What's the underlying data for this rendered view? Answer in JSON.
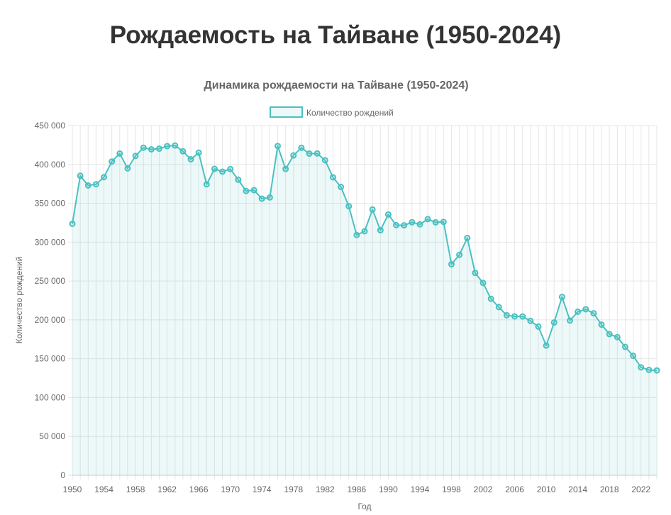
{
  "page": {
    "heading": "Рождаемость на Тайване (1950-2024)"
  },
  "colors": {
    "line": "#4bc0c0",
    "fill": "rgba(75,192,192,0.1)",
    "grid": "#e6e6e6",
    "text": "#666666",
    "heading": "#333333"
  },
  "chart_data": {
    "type": "line",
    "title": "Динамика рождаемости на Тайване (1950-2024)",
    "xlabel": "Год",
    "ylabel": "Количество рождений",
    "ylim": [
      0,
      450000
    ],
    "grid": true,
    "legend_position": "top",
    "y_ticks": [
      "0",
      "50 000",
      "100 000",
      "150 000",
      "200 000",
      "250 000",
      "300 000",
      "350 000",
      "400 000",
      "450 000"
    ],
    "x_ticks": [
      "1950",
      "1954",
      "1958",
      "1962",
      "1966",
      "1970",
      "1974",
      "1978",
      "1982",
      "1986",
      "1990",
      "1994",
      "1998",
      "2002",
      "2006",
      "2010",
      "2014",
      "2018",
      "2022"
    ],
    "series": [
      {
        "name": "Количество рождений",
        "x": [
          1950,
          1951,
          1952,
          1953,
          1954,
          1955,
          1956,
          1957,
          1958,
          1959,
          1960,
          1961,
          1962,
          1963,
          1964,
          1965,
          1966,
          1967,
          1968,
          1969,
          1970,
          1971,
          1972,
          1973,
          1974,
          1975,
          1976,
          1977,
          1978,
          1979,
          1980,
          1981,
          1982,
          1983,
          1984,
          1985,
          1986,
          1987,
          1988,
          1989,
          1990,
          1991,
          1992,
          1993,
          1994,
          1995,
          1996,
          1997,
          1998,
          1999,
          2000,
          2001,
          2002,
          2003,
          2004,
          2005,
          2006,
          2007,
          2008,
          2009,
          2010,
          2011,
          2012,
          2013,
          2014,
          2015,
          2016,
          2017,
          2018,
          2019,
          2020,
          2021,
          2022,
          2023,
          2024
        ],
        "values": [
          323600,
          385400,
          372900,
          374500,
          383600,
          403700,
          414000,
          394900,
          410900,
          421500,
          419400,
          420300,
          423500,
          424300,
          416900,
          406600,
          415100,
          374300,
          394300,
          390700,
          394000,
          380400,
          365800,
          366900,
          355900,
          357500,
          423700,
          394100,
          411600,
          421400,
          413900,
          414100,
          405300,
          383400,
          371000,
          346200,
          309200,
          314000,
          342000,
          315300,
          335600,
          321900,
          321600,
          325600,
          322900,
          329600,
          325500,
          326000,
          271500,
          283700,
          305300,
          260400,
          247500,
          227100,
          216400,
          205900,
          204500,
          204400,
          198700,
          191300,
          166900,
          196600,
          229500,
          199100,
          210400,
          213600,
          208400,
          193800,
          181600,
          177800,
          165200,
          153800,
          138900,
          135600,
          134900
        ]
      }
    ]
  }
}
